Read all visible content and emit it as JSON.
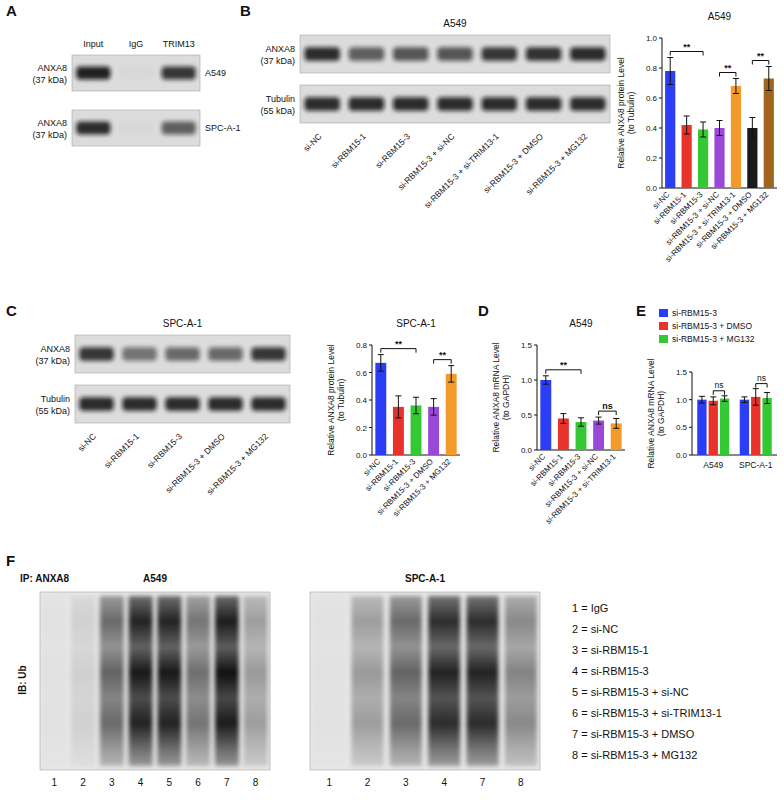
{
  "panel_labels": [
    "A",
    "B",
    "C",
    "D",
    "E",
    "F"
  ],
  "blots": {
    "A": {
      "lanes": [
        "Input",
        "IgG",
        "TRIM13"
      ],
      "rows": [
        {
          "label": "ANXA8",
          "size": "(37 kDa)",
          "cell": "A549",
          "intensity": [
            0.9,
            0.02,
            0.8
          ]
        },
        {
          "label": "ANXA8",
          "size": "(37 kDa)",
          "cell": "SPC-A-1",
          "intensity": [
            0.85,
            0.02,
            0.6
          ]
        }
      ]
    },
    "B": {
      "title": "A549",
      "lanes": [
        "si-NC",
        "si-RBM15-1",
        "si-RBM15-3",
        "si-RBM15-3 + si-NC",
        "si-RBM15-3 + si-TRIM13-1",
        "si-RBM15-3 + DMSO",
        "si-RBM15-3 + MG132"
      ],
      "rows": [
        {
          "label": "ANXA8",
          "size": "(37 kDa)",
          "intensity": [
            0.85,
            0.6,
            0.65,
            0.65,
            0.8,
            0.82,
            0.85
          ]
        },
        {
          "label": "Tubulin",
          "size": "(55 kDa)",
          "intensity": [
            0.85,
            0.85,
            0.85,
            0.85,
            0.85,
            0.85,
            0.85
          ]
        }
      ]
    },
    "C": {
      "title": "SPC-A-1",
      "lanes": [
        "si-NC",
        "si-RBM15-1",
        "si-RBM15-3",
        "si-RBM15-3 + DMSO",
        "si-RBM15-3 + MG132"
      ],
      "rows": [
        {
          "label": "ANXA8",
          "size": "(37 kDa)",
          "intensity": [
            0.8,
            0.5,
            0.55,
            0.55,
            0.8
          ]
        },
        {
          "label": "Tubulin",
          "size": "(55 kDa)",
          "intensity": [
            0.85,
            0.85,
            0.85,
            0.85,
            0.85
          ]
        }
      ]
    },
    "F": {
      "ip": "IP: ANXA8",
      "ib": "IB: Ub",
      "key": [
        "1 = IgG",
        "2 = si-NC",
        "3 = si-RBM15-1",
        "4 = si-RBM15-3",
        "5 = si-RBM15-3 + si-NC",
        "6 = si-RBM15-3 + si-TRIM13-1",
        "7 = si-RBM15-3 + DMSO",
        "8 = si-RBM15-3 + MG132"
      ],
      "blots": [
        {
          "title": "A549",
          "lanes": [
            "1",
            "2",
            "3",
            "4",
            "5",
            "6",
            "7",
            "8"
          ],
          "intensity": [
            0.02,
            0.1,
            0.6,
            0.95,
            0.95,
            0.55,
            0.98,
            0.35
          ]
        },
        {
          "title": "SPC-A-1",
          "lanes": [
            "1",
            "2",
            "3",
            "4",
            "7",
            "8"
          ],
          "intensity": [
            0.02,
            0.35,
            0.6,
            0.9,
            0.9,
            0.45
          ]
        }
      ]
    }
  },
  "chart_data": [
    {
      "type": "bar",
      "title": "A549",
      "y_label": "Relative ANXA8 protein Level (to Tubulin)",
      "categories": [
        "si-NC",
        "si-RBM15-1",
        "si-RBM15-3",
        "si-RBM15-3 + si-NC",
        "si-RBM15-3 + si-TRIM13-1",
        "si-RBM15-3 + DMSO",
        "si-RBM15-3 + MG132"
      ],
      "values": [
        0.78,
        0.42,
        0.39,
        0.4,
        0.68,
        0.4,
        0.73
      ],
      "errors": [
        0.09,
        0.06,
        0.05,
        0.05,
        0.05,
        0.07,
        0.08
      ],
      "colors": [
        "#2b3df5",
        "#e8322a",
        "#34c934",
        "#9b48d9",
        "#f39a2b",
        "#1a1a1a",
        "#a0641c"
      ],
      "ylim": [
        0,
        1
      ],
      "yticks": [
        {
          "value": 0,
          "label": "0.0"
        },
        0.2,
        0.4,
        0.6,
        0.8,
        {
          "value": 1,
          "label": "1.0"
        }
      ],
      "annotations": [
        {
          "text": "**",
          "between": [
            "si-NC",
            "si-RBM15-3"
          ]
        },
        {
          "text": "**",
          "between": [
            "si-RBM15-3 + si-NC",
            "si-RBM15-3 + si-TRIM13-1"
          ]
        },
        {
          "text": "**",
          "between": [
            "si-RBM15-3 + DMSO",
            "si-RBM15-3 + MG132"
          ]
        }
      ]
    },
    {
      "type": "bar",
      "title": "SPC-A-1",
      "y_label": "Relative ANXA8 protein Level (to Tubulin)",
      "categories": [
        "si-NC",
        "si-RBM15-1",
        "si-RBM15-3",
        "si-RBM15-3 + DMSO",
        "si-RBM15-3 + MG132"
      ],
      "values": [
        0.67,
        0.35,
        0.36,
        0.35,
        0.59
      ],
      "errors": [
        0.06,
        0.08,
        0.06,
        0.06,
        0.06
      ],
      "colors": [
        "#2b3df5",
        "#e8322a",
        "#34c934",
        "#9b48d9",
        "#f39a2b"
      ],
      "ylim": [
        0,
        0.8
      ],
      "yticks": [
        {
          "value": 0,
          "label": "0.0"
        },
        0.2,
        0.4,
        0.6,
        0.8
      ],
      "annotations": [
        {
          "text": "**",
          "between": [
            "si-NC",
            "si-RBM15-3"
          ]
        },
        {
          "text": "**",
          "between": [
            "si-RBM15-3 + DMSO",
            "si-RBM15-3 + MG132"
          ]
        }
      ]
    },
    {
      "type": "bar",
      "title": "A549",
      "y_label": "Relative ANXA8 mRNA Level (to GAPDH)",
      "categories": [
        "si-NC",
        "si-RBM15-1",
        "si-RBM15-3",
        "si-RBM15-3 + si-NC",
        "si-RBM15-3 + si-TRIM13-1"
      ],
      "values": [
        1.0,
        0.45,
        0.4,
        0.42,
        0.38
      ],
      "errors": [
        0.06,
        0.07,
        0.06,
        0.05,
        0.07
      ],
      "colors": [
        "#2b3df5",
        "#e8322a",
        "#34c934",
        "#9b48d9",
        "#f39a2b"
      ],
      "ylim": [
        0,
        1.5
      ],
      "yticks": [
        {
          "value": 0,
          "label": "0.0"
        },
        0.5,
        {
          "value": 1,
          "label": "1.0"
        },
        1.5
      ],
      "annotations": [
        {
          "text": "**",
          "between": [
            "si-NC",
            "si-RBM15-3"
          ]
        },
        {
          "text": "ns",
          "between": [
            "si-RBM15-3 + si-NC",
            "si-RBM15-3 + si-TRIM13-1"
          ]
        }
      ]
    },
    {
      "type": "bar",
      "y_label": "Relative ANXA8 mRNA Level (to GAPDH)",
      "categories": [
        "A549",
        "SPC-A-1"
      ],
      "series": [
        {
          "name": "si-RBM15-3",
          "color": "#2b3df5",
          "values": [
            1.0,
            1.0
          ],
          "errors": [
            0.06,
            0.05
          ]
        },
        {
          "name": "si-RBM15-3 + DMSO",
          "color": "#e8322a",
          "values": [
            0.98,
            1.05
          ],
          "errors": [
            0.07,
            0.15
          ]
        },
        {
          "name": "si-RBM15-3 + MG132",
          "color": "#34c934",
          "values": [
            1.02,
            1.03
          ],
          "errors": [
            0.05,
            0.1
          ]
        }
      ],
      "ylim": [
        0,
        1.5
      ],
      "yticks": [
        {
          "value": 0,
          "label": "0.0"
        },
        0.5,
        {
          "value": 1,
          "label": "1.0"
        },
        1.5
      ],
      "legend": "top",
      "annotations": [
        {
          "text": "ns",
          "category": "A549",
          "between": [
            "si-RBM15-3 + DMSO",
            "si-RBM15-3 + MG132"
          ]
        },
        {
          "text": "ns",
          "category": "SPC-A-1",
          "between": [
            "si-RBM15-3 + DMSO",
            "si-RBM15-3 + MG132"
          ]
        }
      ]
    }
  ]
}
